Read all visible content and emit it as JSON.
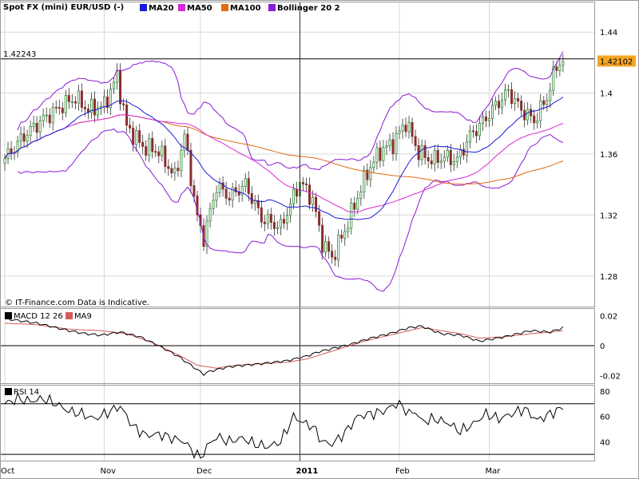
{
  "chart_data": [
    {
      "type": "candlestick",
      "title": "Spot FX (mini) EUR/USD (-)",
      "legend": [
        {
          "name": "MA20",
          "color": "#1a1ad6"
        },
        {
          "name": "MA50",
          "color": "#d62ad6"
        },
        {
          "name": "MA100",
          "color": "#e06a12"
        },
        {
          "name": "Bollinger 20 2",
          "color": "#8a1ad6"
        }
      ],
      "ylim": [
        1.26,
        1.46
      ],
      "yticks": [
        "1.44",
        "1.4",
        "1.36",
        "1.32",
        "1.28"
      ],
      "ytick_values": [
        1.44,
        1.4,
        1.36,
        1.32,
        1.28
      ],
      "xticks": [
        "Oct",
        "Nov",
        "Dec",
        "2011",
        "Feb",
        "Mar"
      ],
      "xtick_days": [
        0,
        31,
        61,
        92,
        123,
        151
      ],
      "x_last_day": 174,
      "high_line_label": "1.42243",
      "high_line_value": 1.42243,
      "last_price_label": "1.42102",
      "last_price_value": 1.42102,
      "crosshair_day": 92,
      "credit": "© IT-Finance.com Data is Indicative.",
      "colors": {
        "up": "#2d8a2d",
        "down": "#8a2d2d",
        "grid": "#d8d8d8",
        "price_box": "#f5a623"
      },
      "close_anchors": [
        [
          0,
          1.357
        ],
        [
          6,
          1.372
        ],
        [
          12,
          1.383
        ],
        [
          18,
          1.392
        ],
        [
          22,
          1.397
        ],
        [
          26,
          1.389
        ],
        [
          31,
          1.392
        ],
        [
          35,
          1.411
        ],
        [
          38,
          1.378
        ],
        [
          43,
          1.365
        ],
        [
          48,
          1.362
        ],
        [
          53,
          1.345
        ],
        [
          56,
          1.372
        ],
        [
          60,
          1.318
        ],
        [
          62,
          1.305
        ],
        [
          66,
          1.339
        ],
        [
          70,
          1.332
        ],
        [
          75,
          1.34
        ],
        [
          80,
          1.318
        ],
        [
          86,
          1.312
        ],
        [
          92,
          1.342
        ],
        [
          96,
          1.33
        ],
        [
          99,
          1.302
        ],
        [
          102,
          1.292
        ],
        [
          106,
          1.31
        ],
        [
          110,
          1.332
        ],
        [
          113,
          1.348
        ],
        [
          117,
          1.362
        ],
        [
          121,
          1.367
        ],
        [
          125,
          1.381
        ],
        [
          129,
          1.361
        ],
        [
          133,
          1.356
        ],
        [
          137,
          1.358
        ],
        [
          141,
          1.356
        ],
        [
          145,
          1.372
        ],
        [
          149,
          1.381
        ],
        [
          153,
          1.392
        ],
        [
          157,
          1.401
        ],
        [
          161,
          1.389
        ],
        [
          165,
          1.382
        ],
        [
          169,
          1.397
        ],
        [
          172,
          1.418
        ],
        [
          174,
          1.421
        ]
      ]
    },
    {
      "type": "line",
      "title": "MACD 12 26",
      "legend": [
        {
          "name": "MACD 12 26",
          "color": "#000000"
        },
        {
          "name": "MA9",
          "color": "#d65a5a"
        }
      ],
      "ylim": [
        -0.025,
        0.025
      ],
      "yticks": [
        "0.02",
        "0",
        "-0.02"
      ],
      "ytick_values": [
        0.02,
        0,
        -0.02
      ],
      "macd_anchors": [
        [
          0,
          0.018
        ],
        [
          10,
          0.015
        ],
        [
          20,
          0.01
        ],
        [
          25,
          0.008
        ],
        [
          30,
          0.007
        ],
        [
          36,
          0.009
        ],
        [
          42,
          0.006
        ],
        [
          48,
          0.0
        ],
        [
          54,
          -0.007
        ],
        [
          58,
          -0.013
        ],
        [
          62,
          -0.019
        ],
        [
          64,
          -0.017
        ],
        [
          70,
          -0.014
        ],
        [
          80,
          -0.012
        ],
        [
          88,
          -0.01
        ],
        [
          94,
          -0.007
        ],
        [
          98,
          -0.004
        ],
        [
          102,
          -0.002
        ],
        [
          108,
          0.001
        ],
        [
          114,
          0.005
        ],
        [
          120,
          0.008
        ],
        [
          126,
          0.012
        ],
        [
          130,
          0.013
        ],
        [
          136,
          0.008
        ],
        [
          142,
          0.007
        ],
        [
          148,
          0.003
        ],
        [
          156,
          0.006
        ],
        [
          164,
          0.01
        ],
        [
          170,
          0.009
        ],
        [
          174,
          0.012
        ]
      ],
      "signal_anchors": [
        [
          0,
          0.015
        ],
        [
          10,
          0.014
        ],
        [
          20,
          0.011
        ],
        [
          30,
          0.01
        ],
        [
          38,
          0.008
        ],
        [
          46,
          0.002
        ],
        [
          54,
          -0.006
        ],
        [
          60,
          -0.013
        ],
        [
          66,
          -0.015
        ],
        [
          72,
          -0.013
        ],
        [
          80,
          -0.012
        ],
        [
          88,
          -0.011
        ],
        [
          94,
          -0.009
        ],
        [
          100,
          -0.005
        ],
        [
          106,
          -0.001
        ],
        [
          112,
          0.003
        ],
        [
          118,
          0.006
        ],
        [
          124,
          0.009
        ],
        [
          130,
          0.012
        ],
        [
          136,
          0.01
        ],
        [
          142,
          0.008
        ],
        [
          148,
          0.005
        ],
        [
          156,
          0.006
        ],
        [
          164,
          0.008
        ],
        [
          170,
          0.009
        ],
        [
          174,
          0.01
        ]
      ]
    },
    {
      "type": "line",
      "title": "RSI 14",
      "legend": [
        {
          "name": "RSI 14",
          "color": "#000000"
        }
      ],
      "ylim": [
        25,
        85
      ],
      "yticks": [
        "80",
        "60",
        "40"
      ],
      "ytick_values": [
        80,
        60,
        40
      ],
      "hlines": [
        70,
        30
      ],
      "rsi_anchors": [
        [
          0,
          70
        ],
        [
          4,
          74
        ],
        [
          8,
          72
        ],
        [
          12,
          74
        ],
        [
          16,
          70
        ],
        [
          20,
          64
        ],
        [
          24,
          62
        ],
        [
          28,
          58
        ],
        [
          32,
          63
        ],
        [
          36,
          68
        ],
        [
          40,
          52
        ],
        [
          44,
          45
        ],
        [
          48,
          46
        ],
        [
          52,
          43
        ],
        [
          56,
          40
        ],
        [
          58,
          34
        ],
        [
          61,
          27
        ],
        [
          63,
          36
        ],
        [
          66,
          44
        ],
        [
          70,
          40
        ],
        [
          74,
          43
        ],
        [
          78,
          38
        ],
        [
          82,
          36
        ],
        [
          86,
          40
        ],
        [
          90,
          60
        ],
        [
          93,
          55
        ],
        [
          96,
          52
        ],
        [
          99,
          40
        ],
        [
          102,
          38
        ],
        [
          106,
          47
        ],
        [
          110,
          60
        ],
        [
          114,
          62
        ],
        [
          118,
          64
        ],
        [
          122,
          70
        ],
        [
          124,
          68
        ],
        [
          126,
          62
        ],
        [
          128,
          64
        ],
        [
          130,
          56
        ],
        [
          134,
          58
        ],
        [
          138,
          55
        ],
        [
          142,
          48
        ],
        [
          146,
          54
        ],
        [
          150,
          62
        ],
        [
          154,
          58
        ],
        [
          158,
          62
        ],
        [
          162,
          66
        ],
        [
          166,
          57
        ],
        [
          170,
          62
        ],
        [
          174,
          67
        ]
      ]
    }
  ]
}
